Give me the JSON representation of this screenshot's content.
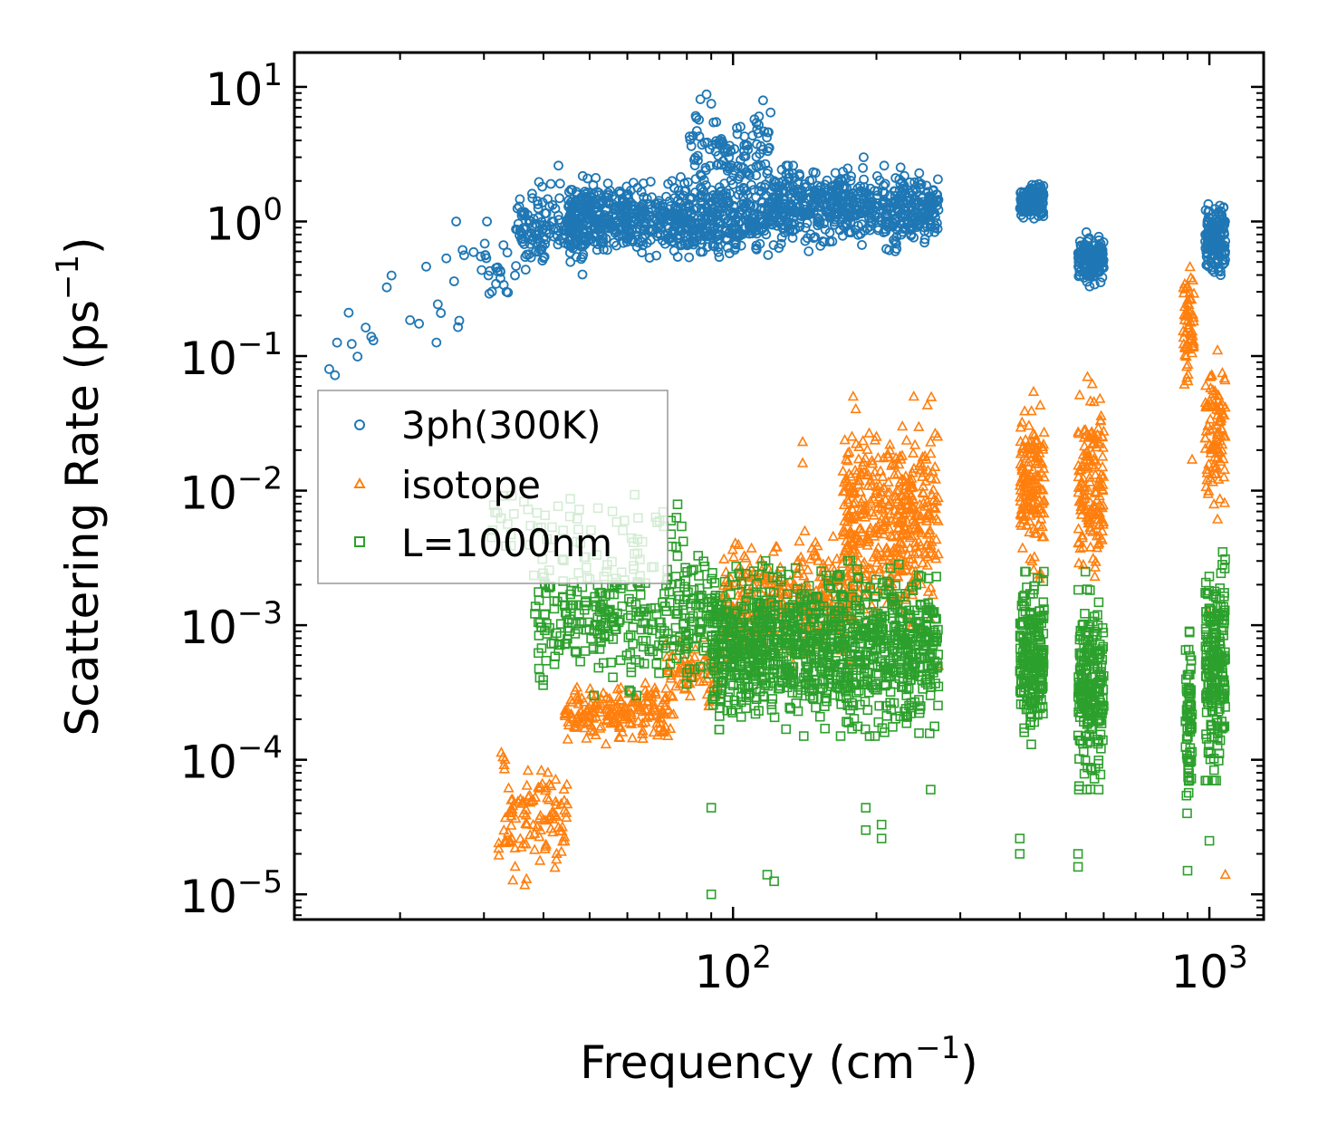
{
  "chart_data": {
    "type": "scatter",
    "title": "",
    "xlabel": "Frequency (cm",
    "xlabel_sup": "−1",
    "xlabel_tail": ")",
    "ylabel": "Scattering Rate (ps",
    "ylabel_sup": "−1",
    "ylabel_tail": ")",
    "x_scale": "log",
    "y_scale": "log",
    "xlim": [
      12,
      1300
    ],
    "ylim": [
      6.5e-06,
      18
    ],
    "grid": false,
    "legend_position": "center-left",
    "x_ticks": [
      {
        "value": 100,
        "base": "10",
        "exp": "2"
      },
      {
        "value": 1000,
        "base": "10",
        "exp": "3"
      }
    ],
    "y_ticks": [
      {
        "value": 10,
        "base": "10",
        "exp": "1"
      },
      {
        "value": 1,
        "base": "10",
        "exp": "0"
      },
      {
        "value": 0.1,
        "base": "10",
        "exp": "−1"
      },
      {
        "value": 0.01,
        "base": "10",
        "exp": "−2"
      },
      {
        "value": 0.001,
        "base": "10",
        "exp": "−3"
      },
      {
        "value": 0.0001,
        "base": "10",
        "exp": "−4"
      },
      {
        "value": 1e-05,
        "base": "10",
        "exp": "−5"
      }
    ],
    "series": [
      {
        "name": "3ph(300K)",
        "marker": "circle",
        "color": "#1f77b4",
        "clusters": [
          {
            "x_range": [
              14,
              20
            ],
            "y_range": [
              0.07,
              0.22
            ],
            "count": 6
          },
          {
            "x_range": [
              18,
              30
            ],
            "y_range": [
              0.1,
              0.5
            ],
            "count": 10
          },
          {
            "x_range": [
              25,
              37
            ],
            "y_range": [
              0.2,
              1.0
            ],
            "count": 30
          },
          {
            "x_range": [
              35,
              50
            ],
            "y_range": [
              0.4,
              2.0
            ],
            "count": 140
          },
          {
            "x_range": [
              45,
              120
            ],
            "y_range": [
              0.5,
              2.2
            ],
            "count": 700
          },
          {
            "x_range": [
              80,
              120
            ],
            "y_range": [
              1.0,
              8.5
            ],
            "count": 130
          },
          {
            "x_range": [
              120,
              270
            ],
            "y_range": [
              0.6,
              2.6
            ],
            "count": 600
          },
          {
            "x_range": [
              400,
              450
            ],
            "y_range": [
              1.0,
              2.0
            ],
            "count": 140
          },
          {
            "x_range": [
              530,
              600
            ],
            "y_range": [
              0.32,
              0.85
            ],
            "count": 140
          },
          {
            "x_range": [
              980,
              1080
            ],
            "y_range": [
              0.38,
              1.5
            ],
            "count": 160
          }
        ],
        "points": [
          [
            88,
            8.8
          ],
          [
            90,
            7.5
          ],
          [
            112,
            5.4
          ],
          [
            43,
            2.6
          ],
          [
            188,
            3.0
          ],
          [
            14.6,
            0.072
          ],
          [
            14.2,
            0.08
          ],
          [
            15.6,
            0.21
          ]
        ]
      },
      {
        "name": "isotope",
        "marker": "triangle",
        "color": "#ff7f0e",
        "clusters": [
          {
            "x_range": [
              32,
              45
            ],
            "y_range": [
              1.1e-05,
              0.00012
            ],
            "count": 120
          },
          {
            "x_range": [
              44,
              75
            ],
            "y_range": [
              0.00013,
              0.00038
            ],
            "count": 200
          },
          {
            "x_range": [
              72,
              95
            ],
            "y_range": [
              0.00025,
              0.0009
            ],
            "count": 80
          },
          {
            "x_range": [
              95,
              180
            ],
            "y_range": [
              0.0005,
              0.005
            ],
            "count": 350
          },
          {
            "x_range": [
              170,
              270
            ],
            "y_range": [
              0.0008,
              0.05
            ],
            "count": 450
          },
          {
            "x_range": [
              400,
              450
            ],
            "y_range": [
              0.002,
              0.06
            ],
            "count": 150
          },
          {
            "x_range": [
              530,
              600
            ],
            "y_range": [
              0.002,
              0.07
            ],
            "count": 150
          },
          {
            "x_range": [
              880,
              930
            ],
            "y_range": [
              0.04,
              0.6
            ],
            "count": 60
          },
          {
            "x_range": [
              980,
              1080
            ],
            "y_range": [
              0.006,
              0.12
            ],
            "count": 100
          }
        ],
        "points": [
          [
            140,
            0.023
          ],
          [
            140,
            0.016
          ],
          [
            920,
            0.017
          ],
          [
            1080,
            1.4e-05
          ],
          [
            1010,
            0.0013
          ],
          [
            270,
            0.0005
          ]
        ]
      },
      {
        "name": "L=1000nm",
        "marker": "square",
        "color": "#2ca02c",
        "clusters": [
          {
            "x_range": [
              30,
              80
            ],
            "y_range": [
              0.003,
              0.012
            ],
            "count": 60
          },
          {
            "x_range": [
              38,
              95
            ],
            "y_range": [
              0.0003,
              0.004
            ],
            "count": 350
          },
          {
            "x_range": [
              90,
              270
            ],
            "y_range": [
              0.00015,
              0.003
            ],
            "count": 1100
          },
          {
            "x_range": [
              400,
              450
            ],
            "y_range": [
              0.00013,
              0.0025
            ],
            "count": 220
          },
          {
            "x_range": [
              530,
              600
            ],
            "y_range": [
              6e-05,
              0.0025
            ],
            "count": 220
          },
          {
            "x_range": [
              890,
              920
            ],
            "y_range": [
              4e-05,
              0.0009
            ],
            "count": 70
          },
          {
            "x_range": [
              980,
              1080
            ],
            "y_range": [
              7e-05,
              0.0035
            ],
            "count": 220
          }
        ],
        "points": [
          [
            90,
            4.4e-05
          ],
          [
            90,
            1e-05
          ],
          [
            118,
            1.4e-05
          ],
          [
            122,
            1.25e-05
          ],
          [
            190,
            4.4e-05
          ],
          [
            190,
            3e-05
          ],
          [
            205,
            3.3e-05
          ],
          [
            205,
            2.6e-05
          ],
          [
            260,
            6e-05
          ],
          [
            400,
            2e-05
          ],
          [
            400,
            2.6e-05
          ],
          [
            530,
            1.6e-05
          ],
          [
            530,
            2e-05
          ],
          [
            900,
            1.5e-05
          ],
          [
            1000,
            2.5e-05
          ]
        ]
      }
    ]
  }
}
